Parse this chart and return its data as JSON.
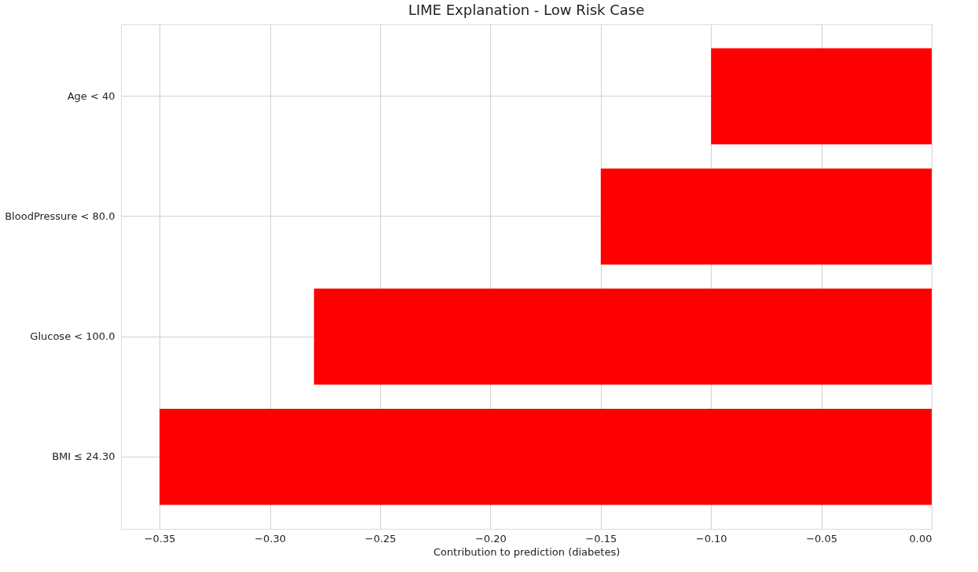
{
  "chart_data": {
    "type": "bar",
    "orientation": "horizontal",
    "title": "LIME Explanation - Low Risk Case",
    "xlabel": "Contribution to prediction (diabetes)",
    "categories": [
      "Age < 40",
      "BloodPressure < 80.0",
      "Glucose < 100.0",
      "BMI ≤ 24.30"
    ],
    "values": [
      -0.1,
      -0.15,
      -0.28,
      -0.35
    ],
    "color": "#ff0000",
    "xlim": [
      -0.3675,
      0.0
    ],
    "xticks": [
      {
        "value": -0.35,
        "label": "−0.35"
      },
      {
        "value": -0.3,
        "label": "−0.30"
      },
      {
        "value": -0.25,
        "label": "−0.25"
      },
      {
        "value": -0.2,
        "label": "−0.20"
      },
      {
        "value": -0.15,
        "label": "−0.15"
      },
      {
        "value": -0.1,
        "label": "−0.10"
      },
      {
        "value": -0.05,
        "label": "−0.05"
      },
      {
        "value": 0.0,
        "label": "0.00"
      }
    ],
    "grid": true
  }
}
